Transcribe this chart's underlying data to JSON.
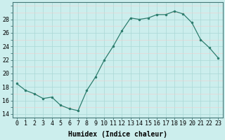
{
  "x": [
    0,
    1,
    2,
    3,
    4,
    5,
    6,
    7,
    8,
    9,
    10,
    11,
    12,
    13,
    14,
    15,
    16,
    17,
    18,
    19,
    20,
    21,
    22,
    23
  ],
  "y": [
    18.5,
    17.5,
    17.0,
    16.3,
    16.5,
    15.3,
    14.8,
    14.5,
    17.5,
    19.5,
    22.0,
    24.0,
    26.3,
    28.2,
    28.0,
    28.2,
    28.7,
    28.7,
    29.2,
    28.8,
    27.5,
    25.0,
    23.8,
    22.3
  ],
  "xlabel": "Humidex (Indice chaleur)",
  "xlim": [
    -0.5,
    23.5
  ],
  "ylim": [
    13.5,
    30.5
  ],
  "yticks": [
    14,
    16,
    18,
    20,
    22,
    24,
    26,
    28
  ],
  "xtick_labels": [
    "0",
    "1",
    "2",
    "3",
    "4",
    "5",
    "6",
    "7",
    "8",
    "9",
    "10",
    "11",
    "12",
    "13",
    "14",
    "15",
    "16",
    "17",
    "18",
    "19",
    "20",
    "21",
    "22",
    "23"
  ],
  "line_color": "#2e7d6e",
  "marker_color": "#2e7d6e",
  "bg_color": "#cceeed",
  "grid_color_major": "#aad8d5",
  "grid_color_minor": "#f5cccc",
  "label_fontsize": 7.0,
  "tick_fontsize": 6.0
}
